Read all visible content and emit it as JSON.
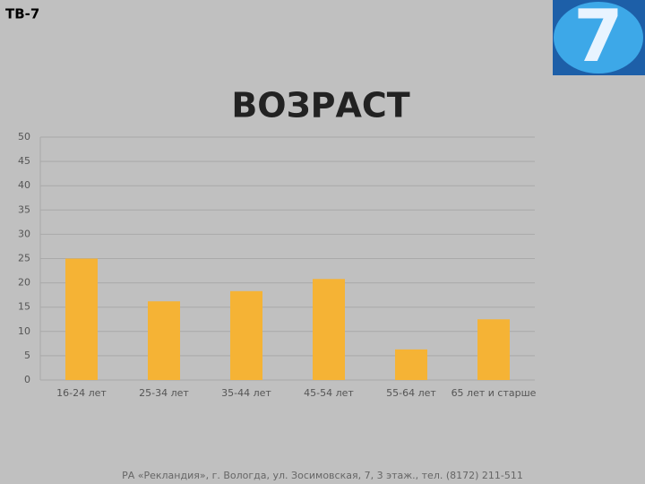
{
  "header": {
    "channel": "ТВ-7",
    "logo": "7"
  },
  "chart_data": {
    "type": "bar",
    "title": "ВОЗРАСТ",
    "categories": [
      "16-24 лет",
      "25-34 лет",
      "35-44 лет",
      "45-54 лет",
      "55-64 лет",
      "65 лет и старше"
    ],
    "values": [
      25,
      16.2,
      18.3,
      20.8,
      6.3,
      12.5
    ],
    "color": "#f5b335",
    "ylim": [
      0,
      50
    ],
    "yticks": [
      0,
      5,
      10,
      15,
      20,
      25,
      30,
      35,
      40,
      45,
      50
    ],
    "grid": true
  },
  "footer": "РА «Рекландия», г. Вологда, ул. Зосимовская, 7, 3 этаж., тел. (8172) 211-511"
}
